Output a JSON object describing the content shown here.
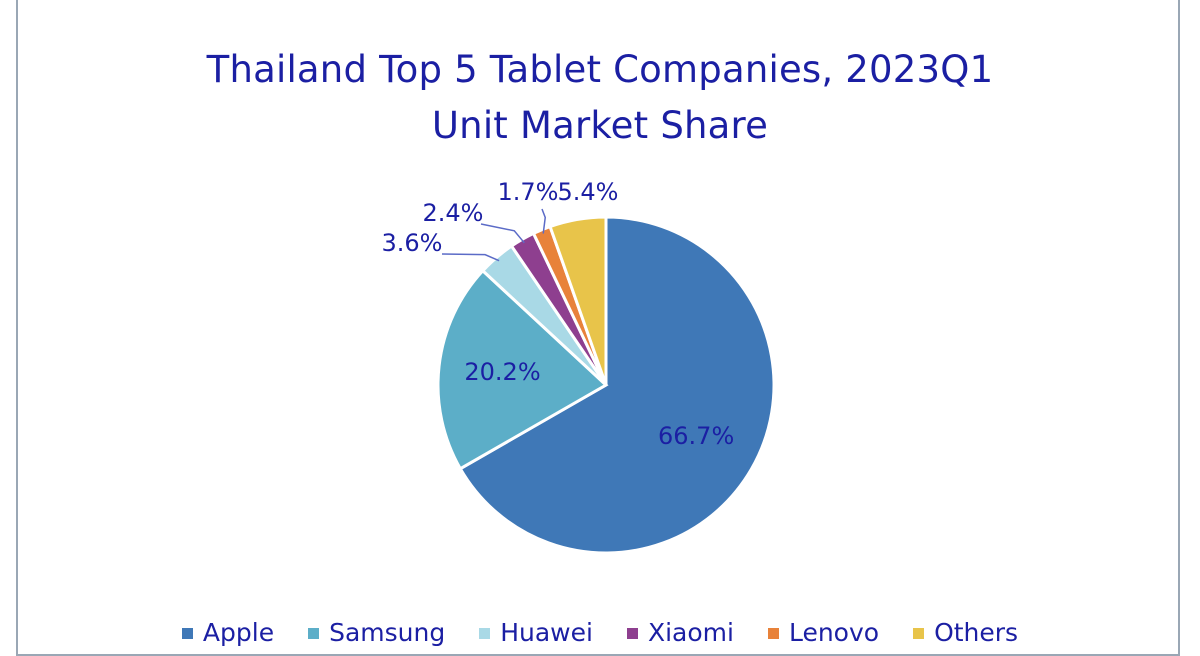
{
  "chart_data": {
    "type": "pie",
    "title": [
      "Thailand Top 5 Tablet Companies, 2023Q1",
      "Unit Market Share"
    ],
    "categories": [
      "Apple",
      "Samsung",
      "Huawei",
      "Xiaomi",
      "Lenovo",
      "Others"
    ],
    "values": [
      66.7,
      20.2,
      3.6,
      2.4,
      1.7,
      5.4
    ],
    "labels": [
      "66.7%",
      "20.2%",
      "3.6%",
      "2.4%",
      "1.7%",
      "5.4%"
    ],
    "colors": [
      "#3f78b7",
      "#5caec8",
      "#a9d9e6",
      "#8e3f8f",
      "#e8823a",
      "#e8c44a"
    ],
    "legend_position": "bottom"
  }
}
